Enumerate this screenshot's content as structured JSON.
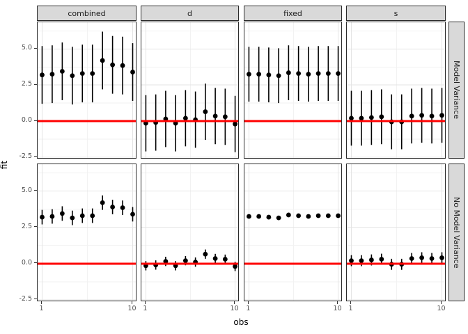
{
  "figure": {
    "background": "#ffffff",
    "panel_border": "#2b2b2b",
    "strip_fill": "#d9d9d9",
    "grid_major_color": "#e4e4e4",
    "grid_minor_color": "#f2f2f2",
    "tick_label_color": "#4d4d4d",
    "point_color": "#000000"
  },
  "chart_data": {
    "type": "pointrange-faceted",
    "title": "",
    "xlabel": "obs",
    "ylabel": "fit",
    "facet_cols": [
      "combined",
      "d",
      "fixed",
      "s"
    ],
    "facet_rows": [
      "Model Variance",
      "No Model Variance"
    ],
    "x": [
      1,
      2,
      3,
      4,
      5,
      6,
      7,
      8,
      9,
      10
    ],
    "x_tick_labels": [
      "1",
      "10"
    ],
    "x_tick_values": [
      1,
      10
    ],
    "y_tick_labels": [
      "5.0",
      "2.5",
      "0.0",
      "-2.5"
    ],
    "y_tick_values": [
      5.0,
      2.5,
      0.0,
      -2.5
    ],
    "xlim": [
      0.55,
      10.45
    ],
    "ylim": [
      -2.65,
      6.85
    ],
    "x_minor_gridlines": [
      5.5
    ],
    "y_minor_gridlines": [
      -1.25,
      1.25,
      3.75,
      6.25
    ],
    "legend": "none",
    "refline": {
      "y": 0,
      "color": "#ff0000"
    },
    "means": {
      "combined": [
        3.2,
        3.25,
        3.45,
        3.15,
        3.3,
        3.3,
        4.2,
        3.9,
        3.85,
        3.4
      ],
      "d": [
        -0.15,
        -0.1,
        0.15,
        -0.15,
        0.2,
        0.1,
        0.65,
        0.35,
        0.3,
        -0.2
      ],
      "fixed": [
        3.25,
        3.25,
        3.2,
        3.15,
        3.35,
        3.3,
        3.25,
        3.3,
        3.3,
        3.3
      ],
      "s": [
        0.2,
        0.2,
        0.25,
        0.3,
        -0.05,
        -0.05,
        0.35,
        0.4,
        0.35,
        0.4
      ]
    },
    "interval_half_width": {
      "Model Variance": {
        "combined": 2.0,
        "d": 1.95,
        "fixed": 1.9,
        "s": 1.9
      },
      "No Model Variance": {
        "combined": 0.5,
        "d": 0.32,
        "fixed": 0.08,
        "s": 0.38
      }
    }
  }
}
